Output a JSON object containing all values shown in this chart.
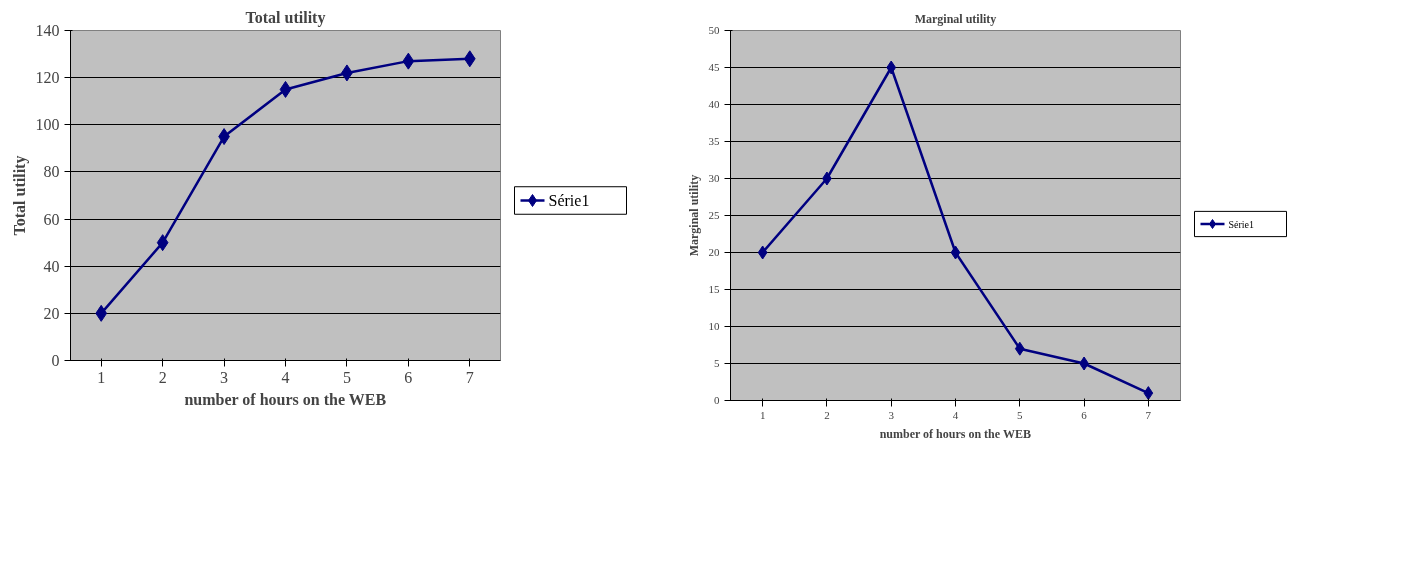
{
  "chart_data": [
    {
      "type": "line",
      "title": "Total utility",
      "xlabel": "number of hours on the WEB",
      "ylabel": "Total utility",
      "categories": [
        "1",
        "2",
        "3",
        "4",
        "5",
        "6",
        "7"
      ],
      "series": [
        {
          "name": "Série1",
          "color": "#000080",
          "values": [
            20,
            50,
            95,
            115,
            122,
            127,
            128
          ]
        }
      ],
      "ylim": [
        0,
        140
      ],
      "yticks": [
        0,
        20,
        40,
        60,
        80,
        100,
        120,
        140
      ],
      "grid": "y",
      "legend": "right",
      "marker": "diamond",
      "line_style": "solid"
    },
    {
      "type": "line",
      "title": "Marginal utility",
      "xlabel": "number of hours on the WEB",
      "ylabel": "Marginal utility",
      "categories": [
        "1",
        "2",
        "3",
        "4",
        "5",
        "6",
        "7"
      ],
      "series": [
        {
          "name": "Série1",
          "color": "#000080",
          "values": [
            20,
            30,
            45,
            20,
            7,
            5,
            1
          ]
        }
      ],
      "ylim": [
        0,
        50
      ],
      "yticks": [
        0,
        5,
        10,
        15,
        20,
        25,
        30,
        35,
        40,
        45,
        50
      ],
      "grid": "y",
      "legend": "right",
      "marker": "diamond",
      "line_style": "solid"
    }
  ]
}
